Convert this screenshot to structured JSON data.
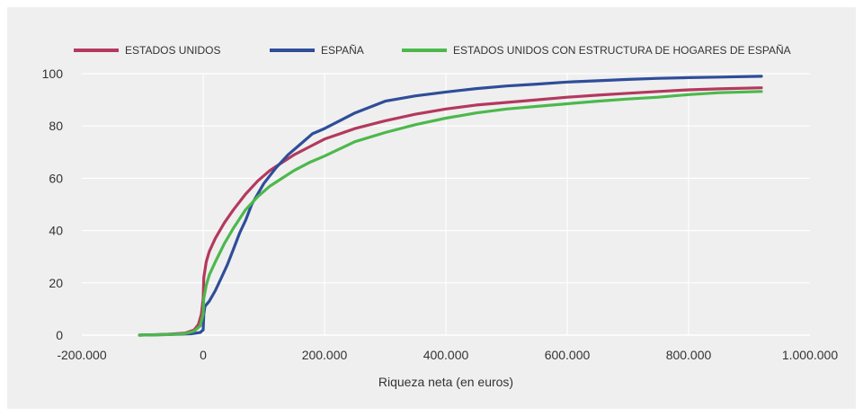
{
  "chart_data": {
    "type": "line",
    "xlabel": "Riqueza neta (en euros)",
    "ylabel": "",
    "xlim": [
      -200000,
      1000000
    ],
    "ylim": [
      0,
      100
    ],
    "x_ticks": [
      -200000,
      0,
      200000,
      400000,
      600000,
      800000,
      1000000
    ],
    "x_tick_labels": [
      "-200.000",
      "0",
      "200.000",
      "400.000",
      "600.000",
      "800.000",
      "1.000.000"
    ],
    "y_ticks": [
      0,
      20,
      40,
      60,
      80,
      100
    ],
    "y_tick_labels": [
      "0",
      "20",
      "40",
      "60",
      "80",
      "100"
    ],
    "grid": true,
    "legend_position": "top",
    "series": [
      {
        "name": "ESTADOS UNIDOS",
        "color": "#b3395e",
        "points": [
          [
            -105000,
            0
          ],
          [
            -60000,
            0.3
          ],
          [
            -30000,
            0.8
          ],
          [
            -15000,
            2
          ],
          [
            -8000,
            4
          ],
          [
            -3000,
            8
          ],
          [
            0,
            14
          ],
          [
            1000,
            22
          ],
          [
            5000,
            28
          ],
          [
            10000,
            32
          ],
          [
            20000,
            37
          ],
          [
            35000,
            43
          ],
          [
            50000,
            48
          ],
          [
            70000,
            54
          ],
          [
            90000,
            59
          ],
          [
            110000,
            63
          ],
          [
            130000,
            66
          ],
          [
            150000,
            69
          ],
          [
            175000,
            72
          ],
          [
            200000,
            75
          ],
          [
            250000,
            79
          ],
          [
            300000,
            82
          ],
          [
            350000,
            84.5
          ],
          [
            400000,
            86.5
          ],
          [
            450000,
            88
          ],
          [
            500000,
            89
          ],
          [
            550000,
            90
          ],
          [
            600000,
            91
          ],
          [
            650000,
            91.8
          ],
          [
            700000,
            92.5
          ],
          [
            750000,
            93.2
          ],
          [
            800000,
            93.8
          ],
          [
            850000,
            94.2
          ],
          [
            920000,
            94.6
          ]
        ]
      },
      {
        "name": "ESPAÑA",
        "color": "#2f4d99",
        "points": [
          [
            -105000,
            0
          ],
          [
            -60000,
            0.2
          ],
          [
            -20000,
            0.5
          ],
          [
            -5000,
            1
          ],
          [
            0,
            2
          ],
          [
            1000,
            8
          ],
          [
            3000,
            11
          ],
          [
            10000,
            13
          ],
          [
            20000,
            17
          ],
          [
            30000,
            22
          ],
          [
            40000,
            27
          ],
          [
            50000,
            33
          ],
          [
            60000,
            39
          ],
          [
            70000,
            44
          ],
          [
            80000,
            50
          ],
          [
            100000,
            58
          ],
          [
            120000,
            64
          ],
          [
            140000,
            69
          ],
          [
            160000,
            73
          ],
          [
            180000,
            77
          ],
          [
            200000,
            79
          ],
          [
            250000,
            85
          ],
          [
            300000,
            89.5
          ],
          [
            350000,
            91.5
          ],
          [
            400000,
            93
          ],
          [
            450000,
            94.3
          ],
          [
            500000,
            95.3
          ],
          [
            550000,
            96
          ],
          [
            600000,
            96.8
          ],
          [
            650000,
            97.3
          ],
          [
            700000,
            97.8
          ],
          [
            750000,
            98.2
          ],
          [
            800000,
            98.5
          ],
          [
            850000,
            98.7
          ],
          [
            920000,
            99
          ]
        ]
      },
      {
        "name": "ESTADOS UNIDOS CON ESTRUCTURA DE HOGARES DE ESPAÑA",
        "color": "#4cb84c",
        "points": [
          [
            -105000,
            0
          ],
          [
            -60000,
            0.2
          ],
          [
            -30000,
            0.6
          ],
          [
            -15000,
            1.5
          ],
          [
            -5000,
            3.5
          ],
          [
            0,
            8
          ],
          [
            1000,
            14
          ],
          [
            5000,
            19
          ],
          [
            10000,
            23
          ],
          [
            20000,
            28
          ],
          [
            35000,
            35
          ],
          [
            50000,
            41
          ],
          [
            70000,
            48
          ],
          [
            90000,
            53
          ],
          [
            110000,
            57
          ],
          [
            130000,
            60
          ],
          [
            150000,
            63
          ],
          [
            175000,
            66
          ],
          [
            200000,
            68.5
          ],
          [
            250000,
            74
          ],
          [
            300000,
            77.5
          ],
          [
            350000,
            80.5
          ],
          [
            400000,
            83
          ],
          [
            450000,
            85
          ],
          [
            500000,
            86.5
          ],
          [
            550000,
            87.5
          ],
          [
            600000,
            88.5
          ],
          [
            650000,
            89.5
          ],
          [
            700000,
            90.3
          ],
          [
            750000,
            91
          ],
          [
            800000,
            92
          ],
          [
            850000,
            92.7
          ],
          [
            920000,
            93.2
          ]
        ]
      }
    ]
  }
}
